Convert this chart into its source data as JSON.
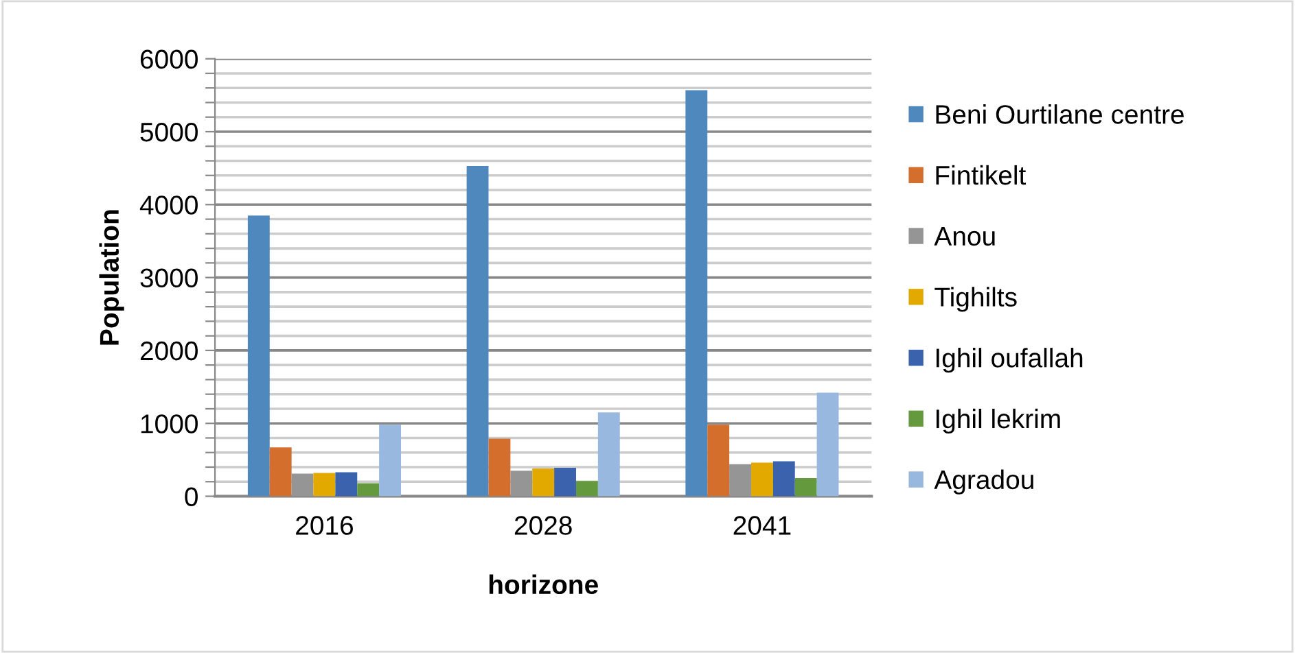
{
  "chart_data": {
    "type": "bar",
    "xlabel": "horizone",
    "ylabel": "Population",
    "categories": [
      "2016",
      "2028",
      "2041"
    ],
    "series": [
      {
        "name": "Beni Ourtilane centre",
        "color": "#4f88bc",
        "values": [
          3850,
          4530,
          5570
        ]
      },
      {
        "name": "Fintikelt",
        "color": "#d46e2c",
        "values": [
          670,
          790,
          980
        ]
      },
      {
        "name": "Anou",
        "color": "#959595",
        "values": [
          310,
          350,
          440
        ]
      },
      {
        "name": "Tighilts",
        "color": "#e2aa00",
        "values": [
          320,
          380,
          460
        ]
      },
      {
        "name": "Ighil oufallah",
        "color": "#3b62ad",
        "values": [
          330,
          390,
          480
        ]
      },
      {
        "name": "Ighil lekrim",
        "color": "#64993d",
        "values": [
          180,
          210,
          250
        ]
      },
      {
        "name": "Agradou",
        "color": "#98b8df",
        "values": [
          980,
          1150,
          1420
        ]
      }
    ],
    "ylim": [
      0,
      6000
    ],
    "yticks": [
      0,
      {
        "value": 200,
        "label": null
      },
      {
        "value": 400,
        "label": null
      },
      {
        "value": 600,
        "label": null
      },
      {
        "value": 800,
        "label": null
      },
      1000,
      {
        "value": 1200,
        "label": null
      },
      {
        "value": 1400,
        "label": null
      },
      {
        "value": 1600,
        "label": null
      },
      {
        "value": 1800,
        "label": null
      },
      2000,
      {
        "value": 2200,
        "label": null
      },
      {
        "value": 2400,
        "label": null
      },
      {
        "value": 2600,
        "label": null
      },
      {
        "value": 2800,
        "label": null
      },
      3000,
      {
        "value": 3200,
        "label": null
      },
      {
        "value": 3400,
        "label": null
      },
      {
        "value": 3600,
        "label": null
      },
      {
        "value": 3800,
        "label": null
      },
      4000,
      {
        "value": 4200,
        "label": null
      },
      {
        "value": 4400,
        "label": null
      },
      {
        "value": 4600,
        "label": null
      },
      {
        "value": 4800,
        "label": null
      },
      5000,
      {
        "value": 5200,
        "label": null
      },
      {
        "value": 5400,
        "label": null
      },
      {
        "value": 5600,
        "label": null
      },
      {
        "value": 5800,
        "label": null
      },
      6000
    ],
    "grid": "y",
    "legend": "right"
  }
}
